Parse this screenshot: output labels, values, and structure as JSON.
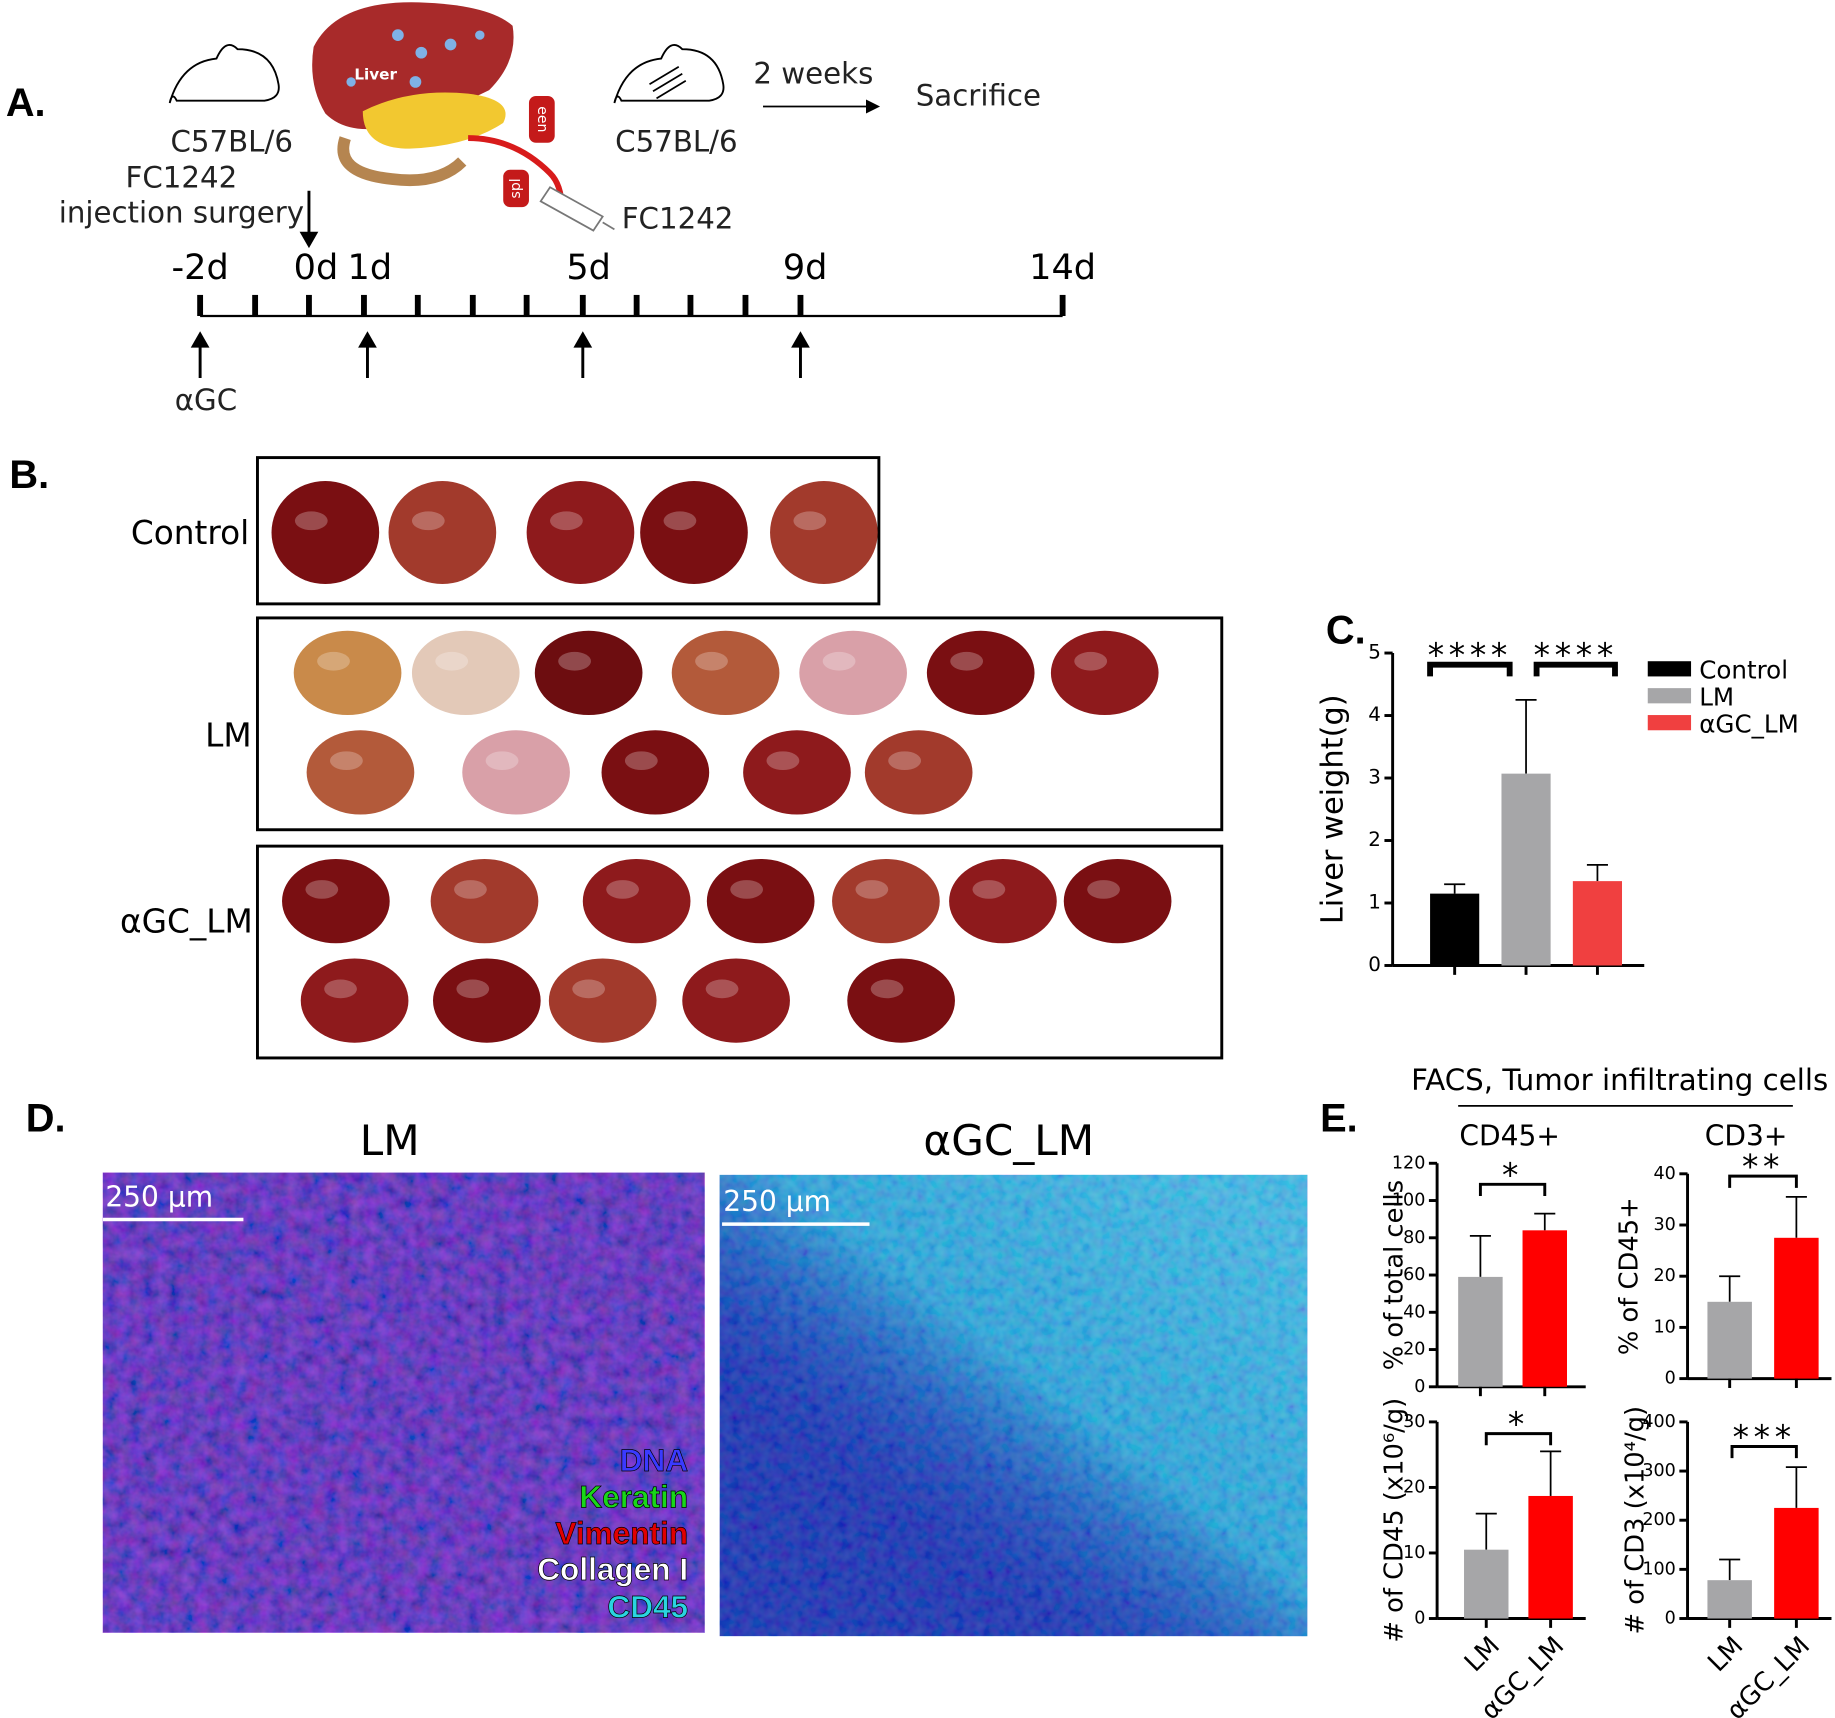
{
  "figure": {
    "panel_a": {
      "label": "A.",
      "strain": "C57BL/6",
      "strain_2": "C57BL/6",
      "cell_line": "FC1242",
      "procedure": "injection surgery",
      "organ": "Liver",
      "spleen_1": "spl",
      "spleen_2": "een",
      "duration": "2 weeks",
      "endpoint": "Sacrifice",
      "syringe": "FC1242",
      "timeline_labels": [
        "-2d",
        "0d",
        "1d",
        "5d",
        "9d",
        "14d"
      ],
      "treatment": "αGC"
    },
    "panel_b": {
      "label": "B.",
      "groups": [
        "Control",
        "LM",
        "αGC_LM"
      ]
    },
    "panel_c": {
      "label": "C."
    },
    "panel_d": {
      "label": "D.",
      "titles": [
        "LM",
        "αGC_LM"
      ],
      "scale_bars": [
        "250 μm",
        "250 μm"
      ],
      "stains": [
        "DNA",
        "Keratin",
        "Vimentin",
        "Collagen I",
        "CD45"
      ]
    },
    "panel_e": {
      "label": "E.",
      "title": "FACS,  Tumor infiltrating cells"
    }
  },
  "chart_data": [
    {
      "type": "bar",
      "ylabel": "Liver weight(g)",
      "ylim": [
        0,
        5
      ],
      "yticks": [
        0,
        1,
        2,
        3,
        4,
        5
      ],
      "series": [
        {
          "name": "Control",
          "color": "#000000",
          "values": [
            1.15
          ],
          "errors": [
            0.15
          ]
        },
        {
          "name": "LM",
          "color": "#a6a6a8",
          "values": [
            3.07
          ],
          "errors": [
            1.18
          ]
        },
        {
          "name": "αGC_LM",
          "color": "#f04040",
          "values": [
            1.35
          ],
          "errors": [
            0.26
          ]
        }
      ],
      "annotations": [
        "****",
        "****"
      ]
    },
    {
      "type": "bar",
      "title": "CD45+",
      "ylabel": "% of total cells",
      "categories": [
        null,
        null
      ],
      "values": [
        59,
        84
      ],
      "errors": [
        22,
        9
      ],
      "colors": [
        "#a6a6a8",
        "#ff0000"
      ],
      "ylim": [
        0,
        120
      ],
      "yticks": [
        0,
        20,
        40,
        60,
        80,
        100,
        120
      ],
      "annotations": [
        "*"
      ]
    },
    {
      "type": "bar",
      "title": "CD3+",
      "ylabel": "% of CD45+",
      "categories": [
        null,
        null
      ],
      "values": [
        15,
        27.5
      ],
      "errors": [
        5,
        8
      ],
      "colors": [
        "#a6a6a8",
        "#ff0000"
      ],
      "ylim": [
        0,
        40
      ],
      "yticks": [
        0,
        10,
        20,
        30,
        40
      ],
      "annotations": [
        "**"
      ]
    },
    {
      "type": "bar",
      "ylabel": "# of CD45 (x10⁶/g)",
      "categories": [
        "LM",
        "αGC_LM"
      ],
      "values": [
        10.5,
        18.7
      ],
      "errors": [
        5.5,
        6.8
      ],
      "colors": [
        "#a6a6a8",
        "#ff0000"
      ],
      "ylim": [
        0,
        30
      ],
      "yticks": [
        0,
        10,
        20,
        30
      ],
      "annotations": [
        "*"
      ]
    },
    {
      "type": "bar",
      "ylabel": "# of CD3 (x10⁴/g)",
      "categories": [
        "LM",
        "αGC_LM"
      ],
      "values": [
        78,
        225
      ],
      "errors": [
        42,
        83
      ],
      "colors": [
        "#a6a6a8",
        "#ff0000"
      ],
      "ylim": [
        0,
        400
      ],
      "yticks": [
        0,
        100,
        200,
        300,
        400
      ],
      "annotations": [
        "***"
      ]
    }
  ]
}
